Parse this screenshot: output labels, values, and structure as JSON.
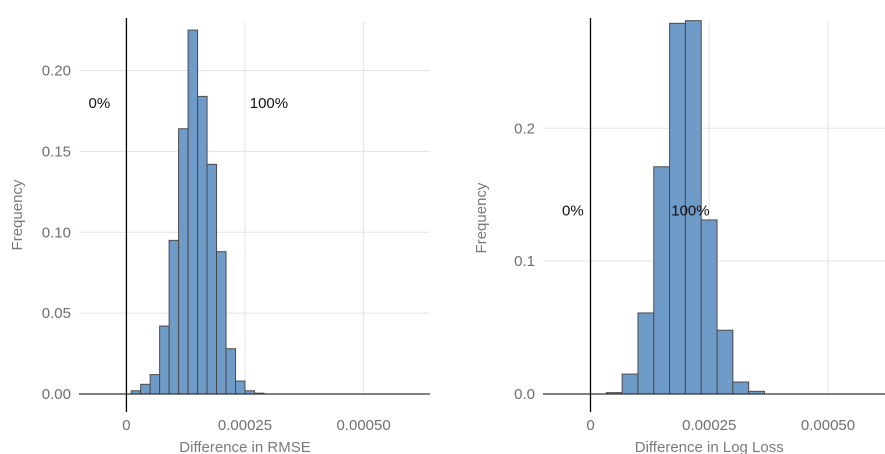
{
  "chart_data": [
    {
      "type": "bar",
      "subtype": "histogram",
      "xlabel": "Difference in RMSE",
      "ylabel": "Frequency",
      "xlim": [
        -0.0001,
        0.00064
      ],
      "ylim": [
        0,
        0.23
      ],
      "xticks": [
        0,
        0.00025,
        0.0005
      ],
      "xtick_labels": [
        "0",
        "0.00025",
        "0.00050"
      ],
      "yticks": [
        0,
        0.05,
        0.1,
        0.15,
        0.2
      ],
      "ytick_labels": [
        "0.00",
        "0.05",
        "0.10",
        "0.15",
        "0.20"
      ],
      "grid": true,
      "vline_x": 0,
      "bar_color": "#6f9bc8",
      "bin_width": 2e-05,
      "bins_start": 1e-05,
      "values": [
        0.002,
        0.006,
        0.012,
        0.042,
        0.095,
        0.164,
        0.225,
        0.184,
        0.142,
        0.088,
        0.028,
        0.008,
        0.002,
        0.0005
      ],
      "baseline_range": [
        -0.0001,
        0.00064
      ],
      "annotations": [
        {
          "text": "0%",
          "x": -8e-05,
          "y": 0.18
        },
        {
          "text": "100%",
          "x": 0.00026,
          "y": 0.18
        }
      ]
    },
    {
      "type": "bar",
      "subtype": "histogram",
      "xlabel": "Difference in Log Loss",
      "ylabel": "Frequency",
      "xlim": [
        -0.0001,
        0.00062
      ],
      "ylim": [
        0,
        0.28
      ],
      "xticks": [
        0,
        0.00025,
        0.0005
      ],
      "xtick_labels": [
        "0",
        "0.00025",
        "0.00050"
      ],
      "yticks": [
        0,
        0.1,
        0.2
      ],
      "ytick_labels": [
        "0.0",
        "0.1",
        "0.2"
      ],
      "grid": true,
      "vline_x": 0,
      "bar_color": "#6f9bc8",
      "bin_width": 3.33e-05,
      "bins_start": 3.33e-05,
      "values": [
        0.001,
        0.015,
        0.061,
        0.171,
        0.279,
        0.281,
        0.131,
        0.048,
        0.009,
        0.002
      ],
      "baseline_range": [
        -0.0001,
        0.00062
      ],
      "annotations": [
        {
          "text": "0%",
          "x": -6e-05,
          "y": 0.138
        },
        {
          "text": "100%",
          "x": 0.00017,
          "y": 0.138
        }
      ]
    }
  ]
}
